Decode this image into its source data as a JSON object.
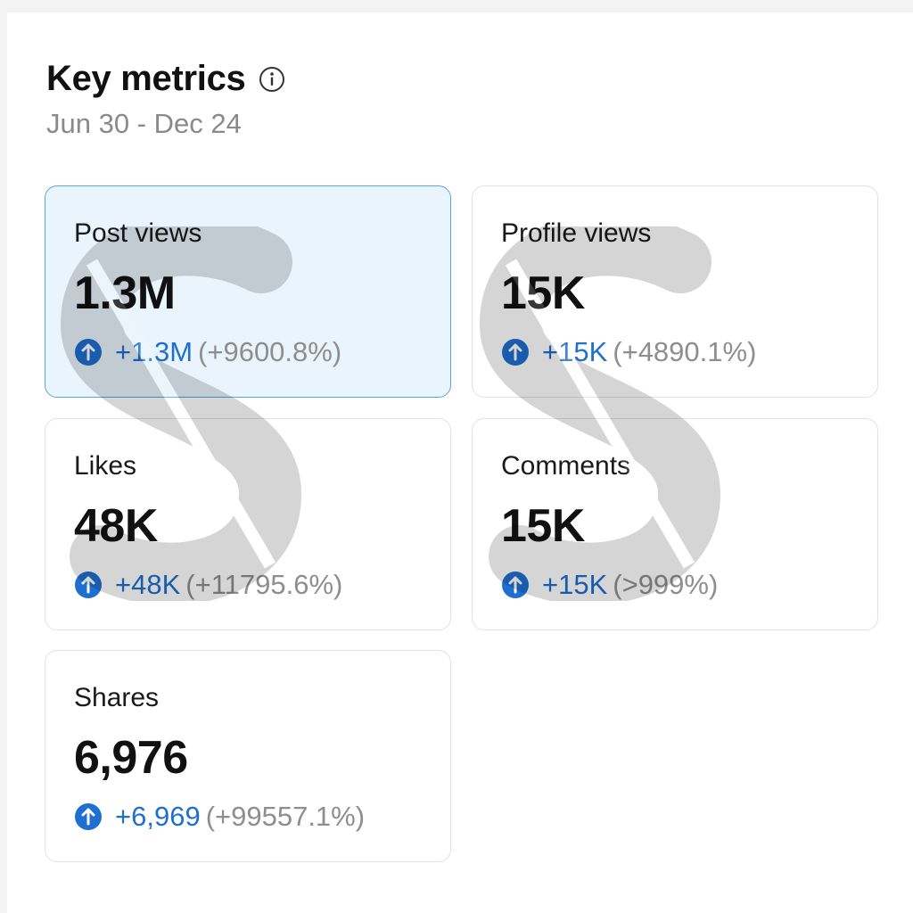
{
  "header": {
    "title": "Key metrics",
    "date_range": "Jun 30 - Dec 24"
  },
  "icons": {
    "info": "info-icon",
    "trend_up": "arrow-up-circle-icon"
  },
  "colors": {
    "accent": "#1f6fd0",
    "selected_bg": "#eaf4fc",
    "selected_border": "#59a6dc",
    "muted_text": "#8a8a8a"
  },
  "metrics": [
    {
      "label": "Post views",
      "value": "1.3M",
      "delta": "+1.3M",
      "delta_pct": "(+9600.8%)",
      "selected": true
    },
    {
      "label": "Profile views",
      "value": "15K",
      "delta": "+15K",
      "delta_pct": "(+4890.1%)",
      "selected": false
    },
    {
      "label": "Likes",
      "value": "48K",
      "delta": "+48K",
      "delta_pct": "(+11795.6%)",
      "selected": false
    },
    {
      "label": "Comments",
      "value": "15K",
      "delta": "+15K",
      "delta_pct": "(>999%)",
      "selected": false
    },
    {
      "label": "Shares",
      "value": "6,976",
      "delta": "+6,969",
      "delta_pct": "(+99557.1%)",
      "selected": false
    }
  ]
}
